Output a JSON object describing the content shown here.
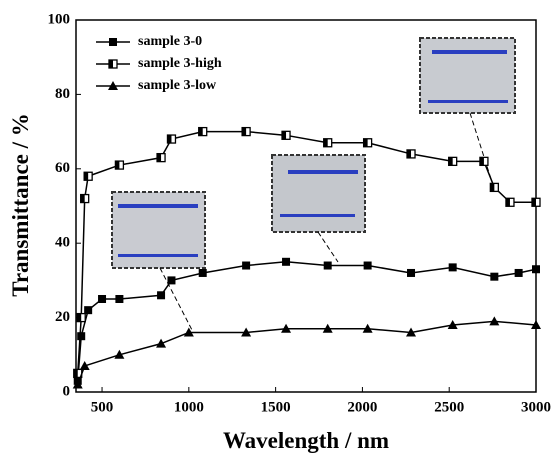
{
  "chart_data": {
    "type": "line",
    "x_label": "Wavelength / nm",
    "y_label": "Transmittance / %",
    "xlim": [
      350,
      3000
    ],
    "xticks": [
      500,
      1000,
      1500,
      2000,
      2500,
      3000
    ],
    "ylim": [
      0,
      100
    ],
    "yticks": [
      0,
      20,
      40,
      60,
      80,
      100
    ],
    "legend": "upper left",
    "series": [
      {
        "name": "sample 3-0",
        "color": "#000000",
        "marker": "square",
        "x": [
          360,
          380,
          420,
          500,
          600,
          840,
          900,
          1080,
          1330,
          1560,
          1800,
          2030,
          2280,
          2520,
          2760,
          2900,
          3000
        ],
        "values": [
          3,
          15,
          22,
          25,
          25,
          26,
          30,
          32,
          34,
          35,
          34,
          34,
          32,
          33.5,
          31,
          32,
          33
        ]
      },
      {
        "name": "sample 3-high",
        "color": "#000000",
        "marker": "half-square",
        "x": [
          360,
          380,
          400,
          420,
          600,
          840,
          900,
          1080,
          1330,
          1560,
          1800,
          2030,
          2280,
          2520,
          2700,
          2760,
          2850,
          3000
        ],
        "values": [
          5,
          20,
          52,
          58,
          61,
          63,
          68,
          70,
          70,
          69,
          67,
          67,
          64,
          62,
          62,
          55,
          51,
          51
        ]
      },
      {
        "name": "sample 3-low",
        "color": "#000000",
        "marker": "triangle",
        "x": [
          360,
          400,
          600,
          840,
          1000,
          1330,
          1560,
          1800,
          2030,
          2280,
          2520,
          2760,
          3000
        ],
        "values": [
          2,
          7,
          10,
          13,
          16,
          16,
          17,
          17,
          17,
          16,
          18,
          19,
          18
        ]
      }
    ]
  }
}
